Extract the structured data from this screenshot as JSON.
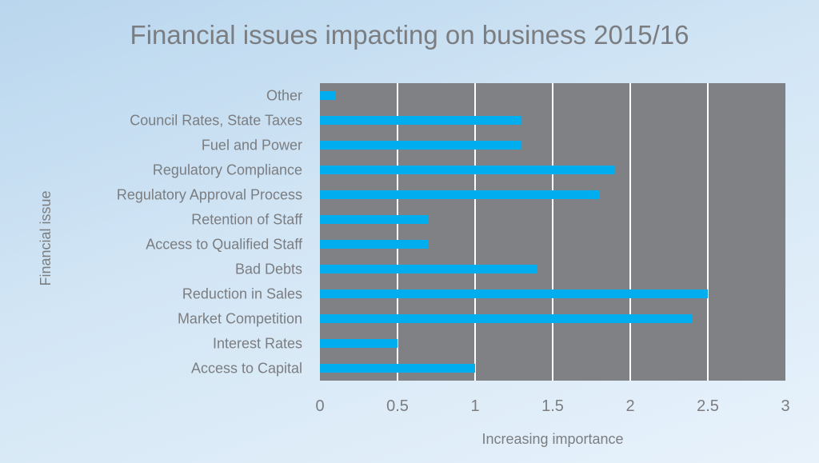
{
  "chart_data": {
    "type": "bar",
    "orientation": "horizontal",
    "title": "Financial issues impacting on business 2015/16",
    "xlabel": "Increasing importance",
    "ylabel": "Financial issue",
    "categories": [
      "Other",
      "Council Rates, State Taxes",
      "Fuel and Power",
      "Regulatory Compliance",
      "Regulatory Approval Process",
      "Retention of Staff",
      "Access to Qualified Staff",
      "Bad Debts",
      "Reduction in Sales",
      "Market Competition",
      "Interest Rates",
      "Access to Capital"
    ],
    "values": [
      0.1,
      1.3,
      1.3,
      1.9,
      1.8,
      0.7,
      0.7,
      1.4,
      2.5,
      2.4,
      0.5,
      1.0
    ],
    "xlim": [
      0,
      3
    ],
    "xticks": [
      "0",
      "0.5",
      "1",
      "1.5",
      "2",
      "2.5",
      "3"
    ],
    "grid": "vertical",
    "colors": {
      "bar": "#00aeef",
      "plot_bg": "#808184",
      "grid": "#ffffff",
      "text": "#7b7d80"
    }
  }
}
